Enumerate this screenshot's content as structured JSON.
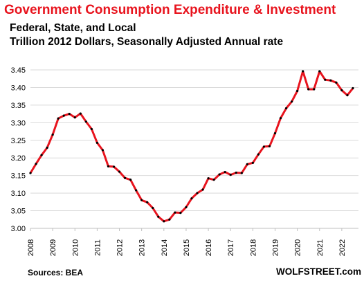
{
  "chart_data": {
    "type": "line",
    "title": "Government Consumption  Expenditure & Investment",
    "subtitles": [
      "Federal, State, and Local",
      "Trillion 2012 Dollars, Seasonally Adjusted Annual rate"
    ],
    "source": "Sources: BEA",
    "brand": "WOLFSTREET.com",
    "ylim": [
      3.0,
      3.45
    ],
    "yticks": [
      "3.00",
      "3.05",
      "3.10",
      "3.15",
      "3.20",
      "3.25",
      "3.30",
      "3.35",
      "3.40",
      "3.45"
    ],
    "xticks": [
      "2008",
      "2009",
      "2010",
      "2011",
      "2012",
      "2013",
      "2014",
      "2015",
      "2016",
      "2017",
      "2018",
      "2019",
      "2020",
      "2021",
      "2022"
    ],
    "xlim": [
      2008.0,
      2022.75
    ],
    "grid": true,
    "line_color": "#e8141e",
    "marker_color": "#000000",
    "x": [
      2008.0,
      2008.25,
      2008.5,
      2008.75,
      2009.0,
      2009.25,
      2009.5,
      2009.75,
      2010.0,
      2010.25,
      2010.5,
      2010.75,
      2011.0,
      2011.25,
      2011.5,
      2011.75,
      2012.0,
      2012.25,
      2012.5,
      2012.75,
      2013.0,
      2013.25,
      2013.5,
      2013.75,
      2014.0,
      2014.25,
      2014.5,
      2014.75,
      2015.0,
      2015.25,
      2015.5,
      2015.75,
      2016.0,
      2016.25,
      2016.5,
      2016.75,
      2017.0,
      2017.25,
      2017.5,
      2017.75,
      2018.0,
      2018.25,
      2018.5,
      2018.75,
      2019.0,
      2019.25,
      2019.5,
      2019.75,
      2020.0,
      2020.25,
      2020.5,
      2020.75,
      2021.0,
      2021.25,
      2021.5,
      2021.75,
      2022.0,
      2022.25,
      2022.5
    ],
    "values": [
      3.157,
      3.183,
      3.208,
      3.229,
      3.266,
      3.312,
      3.32,
      3.325,
      3.315,
      3.326,
      3.303,
      3.282,
      3.243,
      3.222,
      3.176,
      3.175,
      3.161,
      3.143,
      3.138,
      3.108,
      3.08,
      3.074,
      3.058,
      3.033,
      3.02,
      3.025,
      3.045,
      3.044,
      3.06,
      3.085,
      3.1,
      3.11,
      3.142,
      3.138,
      3.153,
      3.16,
      3.152,
      3.158,
      3.157,
      3.182,
      3.186,
      3.21,
      3.232,
      3.233,
      3.27,
      3.313,
      3.341,
      3.36,
      3.39,
      3.446,
      3.395,
      3.395,
      3.446,
      3.422,
      3.42,
      3.414,
      3.392,
      3.378,
      3.398
    ]
  }
}
